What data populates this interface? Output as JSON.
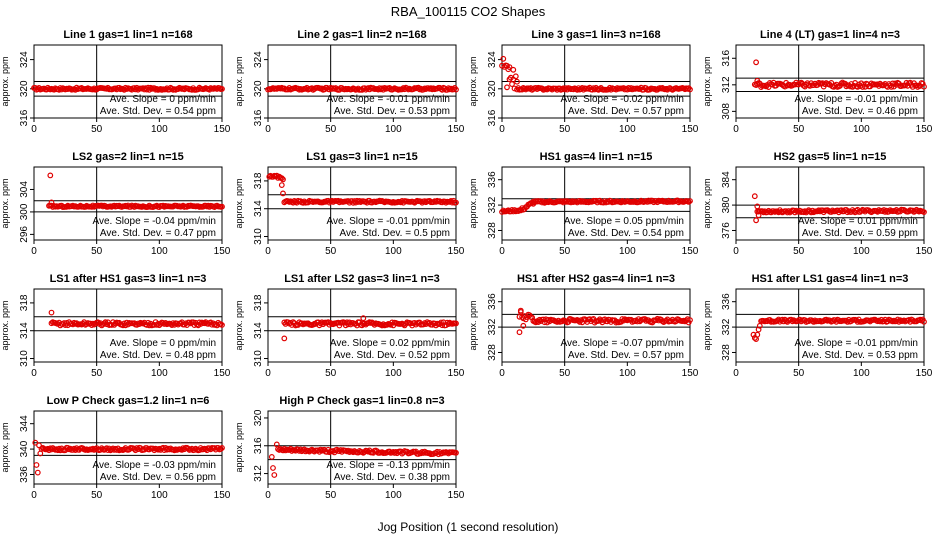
{
  "page": {
    "title": "RBA_100115  CO2 Shapes",
    "xlabel": "Jog Position (1 second resolution)"
  },
  "chart_data": [
    {
      "type": "scatter",
      "title": "Line 1 gas=1 lin=1 n=168",
      "ylabel": "approx. ppm",
      "xlim": [
        0,
        150
      ],
      "ylim": [
        316,
        326
      ],
      "yticks": [
        316,
        320,
        324
      ],
      "xticks": [
        0,
        50,
        100,
        150
      ],
      "hlines": [
        321,
        319
      ],
      "vline": 50,
      "x_start": 0,
      "annotation": {
        "slope": "Ave. Slope = 0 ppm/min",
        "sd": "Ave. Std. Dev. = 0.54 ppm"
      },
      "series": [
        {
          "segments": [
            {
              "x0": 0,
              "x1": 150,
              "y0": 320,
              "y1": 320,
              "noise": 0.15
            }
          ],
          "outliers": []
        }
      ]
    },
    {
      "type": "scatter",
      "title": "Line 2 gas=1 lin=2 n=168",
      "ylabel": "approx. ppm",
      "xlim": [
        0,
        150
      ],
      "ylim": [
        316,
        326
      ],
      "yticks": [
        316,
        320,
        324
      ],
      "xticks": [
        0,
        50,
        100,
        150
      ],
      "hlines": [
        321,
        319
      ],
      "vline": 50,
      "x_start": 0,
      "annotation": {
        "slope": "Ave. Slope = -0.01 ppm/min",
        "sd": "Ave. Std. Dev. = 0.53 ppm"
      },
      "series": [
        {
          "segments": [
            {
              "x0": 0,
              "x1": 150,
              "y0": 320,
              "y1": 320,
              "noise": 0.15
            }
          ],
          "outliers": []
        }
      ]
    },
    {
      "type": "scatter",
      "title": "Line 3 gas=1 lin=3 n=168",
      "ylabel": "approx. ppm",
      "xlim": [
        0,
        150
      ],
      "ylim": [
        316,
        326
      ],
      "yticks": [
        316,
        320,
        324
      ],
      "xticks": [
        0,
        50,
        100,
        150
      ],
      "hlines": [
        321,
        319
      ],
      "vline": 50,
      "x_start": 0,
      "annotation": {
        "slope": "Ave. Slope = -0.02 ppm/min",
        "sd": "Ave. Std. Dev. = 0.57 ppm"
      },
      "series": [
        {
          "segments": [
            {
              "x0": 0,
              "x1": 12,
              "y0": 323.5,
              "y1": 320.5,
              "noise": 1.0
            },
            {
              "x0": 12,
              "x1": 150,
              "y0": 320,
              "y1": 320,
              "noise": 0.15
            }
          ],
          "outliers": [
            [
              4,
              320.2
            ],
            [
              6,
              321.3
            ],
            [
              9,
              322.6
            ]
          ]
        }
      ]
    },
    {
      "type": "scatter",
      "title": "Line 4 (LT) gas=1 lin=4 n=3",
      "ylabel": "approx. ppm",
      "xlim": [
        0,
        150
      ],
      "ylim": [
        307,
        318
      ],
      "yticks": [
        308,
        312,
        316
      ],
      "xticks": [
        0,
        50,
        100,
        150
      ],
      "hlines": [
        313,
        311
      ],
      "vline": 50,
      "x_start": 15,
      "annotation": {
        "slope": "Ave. Slope = -0.01 ppm/min",
        "sd": "Ave. Std. Dev. = 0.46 ppm"
      },
      "series": [
        {
          "segments": [
            {
              "x0": 15,
              "x1": 150,
              "y0": 312,
              "y1": 312,
              "noise": 0.35
            }
          ],
          "outliers": [
            [
              16,
              315.4
            ],
            [
              17,
              312.6
            ]
          ]
        }
      ]
    },
    {
      "type": "scatter",
      "title": "LS2 gas=2 lin=1 n=15",
      "ylabel": "approx. ppm",
      "xlim": [
        0,
        150
      ],
      "ylim": [
        295,
        308
      ],
      "yticks": [
        296,
        300,
        304
      ],
      "xticks": [
        0,
        50,
        100,
        150
      ],
      "hlines": [
        302,
        300
      ],
      "vline": 50,
      "x_start": 12,
      "annotation": {
        "slope": "Ave. Slope = -0.04 ppm/min",
        "sd": "Ave. Std. Dev. = 0.47 ppm"
      },
      "series": [
        {
          "segments": [
            {
              "x0": 12,
              "x1": 150,
              "y0": 301,
              "y1": 301,
              "noise": 0.15
            }
          ],
          "outliers": [
            [
              13,
              306.5
            ],
            [
              14,
              301.7
            ]
          ]
        }
      ]
    },
    {
      "type": "scatter",
      "title": "LS1 gas=3 lin=1 n=15",
      "ylabel": "approx. ppm",
      "xlim": [
        0,
        150
      ],
      "ylim": [
        309.5,
        320
      ],
      "yticks": [
        310,
        314,
        318
      ],
      "xticks": [
        0,
        50,
        100,
        150
      ],
      "hlines": [
        316,
        314
      ],
      "vline": 50,
      "x_start": 0,
      "annotation": {
        "slope": "Ave. Slope = -0.01 ppm/min",
        "sd": "Ave. Std. Dev. = 0.5 ppm"
      },
      "series": [
        {
          "segments": [
            {
              "x0": 1,
              "x1": 12,
              "y0": 318.8,
              "y1": 318.4,
              "noise": 0.2
            },
            {
              "x0": 13,
              "x1": 150,
              "y0": 315,
              "y1": 315,
              "noise": 0.15
            }
          ],
          "outliers": [
            [
              11,
              317.4
            ],
            [
              12,
              316.2
            ]
          ]
        }
      ]
    },
    {
      "type": "scatter",
      "title": "HS1 gas=4 lin=1 n=15",
      "ylabel": "approx. ppm",
      "xlim": [
        0,
        150
      ],
      "ylim": [
        326.5,
        338
      ],
      "yticks": [
        328,
        332,
        336
      ],
      "xticks": [
        0,
        50,
        100,
        150
      ],
      "hlines": [
        333,
        331
      ],
      "vline": 50,
      "x_start": 0,
      "annotation": {
        "slope": "Ave. Slope = 0.05 ppm/min",
        "sd": "Ave. Std. Dev. = 0.54 ppm"
      },
      "series": [
        {
          "segments": [
            {
              "x0": 0,
              "x1": 15,
              "y0": 331,
              "y1": 331.2,
              "noise": 0.15
            },
            {
              "x0": 15,
              "x1": 25,
              "y0": 331.2,
              "y1": 332.4,
              "noise": 0.25
            },
            {
              "x0": 25,
              "x1": 150,
              "y0": 332.5,
              "y1": 332.6,
              "noise": 0.15
            }
          ],
          "outliers": []
        }
      ]
    },
    {
      "type": "scatter",
      "title": "HS2 gas=5 lin=1 n=15",
      "ylabel": "approx. ppm",
      "xlim": [
        0,
        150
      ],
      "ylim": [
        374.5,
        386
      ],
      "yticks": [
        376,
        380,
        384
      ],
      "xticks": [
        0,
        50,
        100,
        150
      ],
      "hlines": [
        380,
        378
      ],
      "vline": 50,
      "x_start": 14,
      "annotation": {
        "slope": "Ave. Slope = 0.01 ppm/min",
        "sd": "Ave. Std. Dev. = 0.59 ppm"
      },
      "series": [
        {
          "segments": [
            {
              "x0": 17,
              "x1": 150,
              "y0": 379,
              "y1": 379.1,
              "noise": 0.2
            }
          ],
          "outliers": [
            [
              15,
              381.4
            ],
            [
              16,
              377.6
            ],
            [
              17,
              379.8
            ],
            [
              18,
              378.4
            ]
          ]
        }
      ]
    },
    {
      "type": "scatter",
      "title": "LS1 after HS1 gas=3 lin=1 n=3",
      "ylabel": "approx. ppm",
      "xlim": [
        0,
        150
      ],
      "ylim": [
        309.5,
        320
      ],
      "yticks": [
        310,
        314,
        318
      ],
      "xticks": [
        0,
        50,
        100,
        150
      ],
      "hlines": [
        316,
        314
      ],
      "vline": 50,
      "x_start": 13,
      "annotation": {
        "slope": "Ave. Slope = 0 ppm/min",
        "sd": "Ave. Std. Dev. = 0.48 ppm"
      },
      "series": [
        {
          "segments": [
            {
              "x0": 14,
              "x1": 150,
              "y0": 315,
              "y1": 315,
              "noise": 0.25
            }
          ],
          "outliers": [
            [
              14,
              316.6
            ]
          ]
        }
      ]
    },
    {
      "type": "scatter",
      "title": "LS1 after LS2 gas=3 lin=1 n=3",
      "ylabel": "approx. ppm",
      "xlim": [
        0,
        150
      ],
      "ylim": [
        309.5,
        320
      ],
      "yticks": [
        310,
        314,
        318
      ],
      "xticks": [
        0,
        50,
        100,
        150
      ],
      "hlines": [
        316,
        314
      ],
      "vline": 50,
      "x_start": 12,
      "annotation": {
        "slope": "Ave. Slope = 0.02 ppm/min",
        "sd": "Ave. Std. Dev. = 0.52 ppm"
      },
      "series": [
        {
          "segments": [
            {
              "x0": 13,
              "x1": 150,
              "y0": 315,
              "y1": 315,
              "noise": 0.25
            }
          ],
          "outliers": [
            [
              13,
              312.9
            ],
            [
              76,
              315.8
            ]
          ]
        }
      ]
    },
    {
      "type": "scatter",
      "title": "HS1 after HS2 gas=4 lin=1 n=3",
      "ylabel": "approx. ppm",
      "xlim": [
        0,
        150
      ],
      "ylim": [
        326.5,
        338
      ],
      "yticks": [
        328,
        332,
        336
      ],
      "xticks": [
        0,
        50,
        100,
        150
      ],
      "hlines": [
        334,
        332
      ],
      "vline": 50,
      "x_start": 13,
      "annotation": {
        "slope": "Ave. Slope = -0.07 ppm/min",
        "sd": "Ave. Std. Dev. = 0.57 ppm"
      },
      "series": [
        {
          "segments": [
            {
              "x0": 14,
              "x1": 30,
              "y0": 334,
              "y1": 333,
              "noise": 0.5
            },
            {
              "x0": 30,
              "x1": 150,
              "y0": 333,
              "y1": 333,
              "noise": 0.3
            }
          ],
          "outliers": [
            [
              14,
              331.2
            ],
            [
              15,
              334.6
            ],
            [
              17,
              332.2
            ]
          ]
        }
      ]
    },
    {
      "type": "scatter",
      "title": "HS1 after LS1 gas=4 lin=1 n=3",
      "ylabel": "approx. ppm",
      "xlim": [
        0,
        150
      ],
      "ylim": [
        326.5,
        338
      ],
      "yticks": [
        328,
        332,
        336
      ],
      "xticks": [
        0,
        50,
        100,
        150
      ],
      "hlines": [
        334,
        332
      ],
      "vline": 50,
      "x_start": 12,
      "annotation": {
        "slope": "Ave. Slope = -0.01 ppm/min",
        "sd": "Ave. Std. Dev. = 0.53 ppm"
      },
      "series": [
        {
          "segments": [
            {
              "x0": 20,
              "x1": 150,
              "y0": 333,
              "y1": 333,
              "noise": 0.2
            }
          ],
          "outliers": [
            [
              14,
              330.8
            ],
            [
              15,
              330.3
            ],
            [
              16,
              330.1
            ],
            [
              17,
              330.8
            ],
            [
              18,
              331.6
            ],
            [
              19,
              332.2
            ]
          ]
        }
      ]
    },
    {
      "type": "scatter",
      "title": "Low P Check gas=1.2 lin=1 n=6",
      "ylabel": "approx. ppm",
      "xlim": [
        0,
        150
      ],
      "ylim": [
        334.5,
        346
      ],
      "yticks": [
        336,
        340,
        344
      ],
      "xticks": [
        0,
        50,
        100,
        150
      ],
      "hlines": [
        341,
        339
      ],
      "vline": 50,
      "x_start": 0,
      "annotation": {
        "slope": "Ave. Slope = -0.03 ppm/min",
        "sd": "Ave. Std. Dev. = 0.56 ppm"
      },
      "series": [
        {
          "segments": [
            {
              "x0": 6,
              "x1": 150,
              "y0": 340,
              "y1": 340,
              "noise": 0.2
            }
          ],
          "outliers": [
            [
              1,
              341
            ],
            [
              2,
              337.5
            ],
            [
              3,
              336.3
            ],
            [
              4,
              340.6
            ],
            [
              5,
              339.3
            ]
          ]
        }
      ]
    },
    {
      "type": "scatter",
      "title": "High P Check gas=1 lin=0.8 n=3",
      "ylabel": "approx. ppm",
      "xlim": [
        0,
        150
      ],
      "ylim": [
        310.5,
        321
      ],
      "yticks": [
        312,
        316,
        320
      ],
      "xticks": [
        0,
        50,
        100,
        150
      ],
      "hlines": [
        316,
        314
      ],
      "vline": 50,
      "x_start": 0,
      "annotation": {
        "slope": "Ave. Slope = -0.13 ppm/min",
        "sd": "Ave. Std. Dev. = 0.38 ppm"
      },
      "series": [
        {
          "segments": [
            {
              "x0": 8,
              "x1": 150,
              "y0": 315.4,
              "y1": 314.9,
              "noise": 0.2
            }
          ],
          "outliers": [
            [
              3,
              314.4
            ],
            [
              4,
              312.8
            ],
            [
              5,
              311.8
            ],
            [
              7,
              316.2
            ]
          ]
        }
      ]
    }
  ]
}
